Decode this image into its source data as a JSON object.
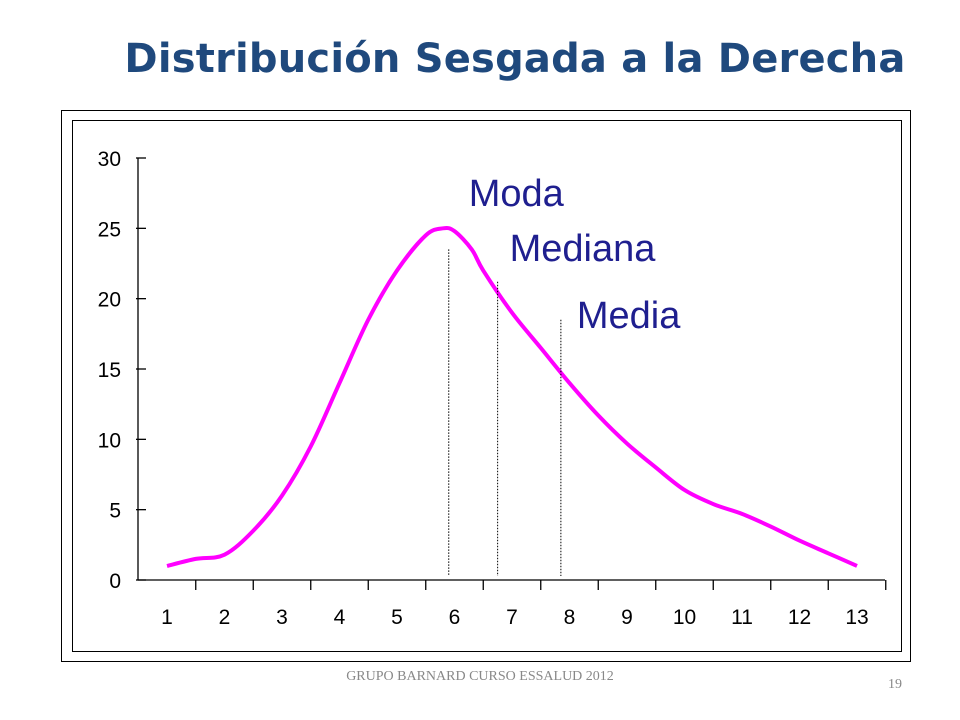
{
  "slide": {
    "title": "Distribución Sesgada a la Derecha",
    "footer": "GRUPO BARNARD CURSO ESSALUD 2012",
    "page_number": "19"
  },
  "colors": {
    "title": "#1F497D",
    "curve": "#FF00FF",
    "annotation": "#1F1F8F",
    "axis": "#000000"
  },
  "chart_data": {
    "type": "line",
    "title": "",
    "xlabel": "",
    "ylabel": "",
    "x_ticks": [
      "1",
      "2",
      "3",
      "4",
      "5",
      "6",
      "7",
      "8",
      "9",
      "10",
      "11",
      "12",
      "13"
    ],
    "y_ticks": [
      "0",
      "5",
      "10",
      "15",
      "20",
      "25",
      "30"
    ],
    "xlim": [
      1,
      13
    ],
    "ylim": [
      0,
      30
    ],
    "grid": false,
    "legend": "none",
    "series": [
      {
        "x": [
          1,
          1.5,
          2,
          2.5,
          3,
          3.5,
          4,
          4.5,
          5,
          5.5,
          5.8,
          6,
          6.3,
          6.5,
          7,
          7.5,
          8,
          8.5,
          9,
          9.5,
          10,
          10.5,
          11,
          11.5,
          12,
          12.5,
          13
        ],
        "y": [
          1,
          1.5,
          1.8,
          3.5,
          6,
          9.5,
          14,
          18.5,
          22,
          24.5,
          25,
          24.8,
          23.5,
          22,
          19,
          16.5,
          14,
          11.7,
          9.7,
          8,
          6.4,
          5.4,
          4.7,
          3.8,
          2.8,
          1.9,
          1
        ]
      }
    ],
    "annotations": [
      {
        "text": "Moda",
        "x": 5.9,
        "line_top": 23.5
      },
      {
        "text": "Mediana",
        "x": 6.75,
        "line_top": 21.2
      },
      {
        "text": "Media",
        "x": 7.85,
        "line_top": 18.5
      }
    ]
  }
}
